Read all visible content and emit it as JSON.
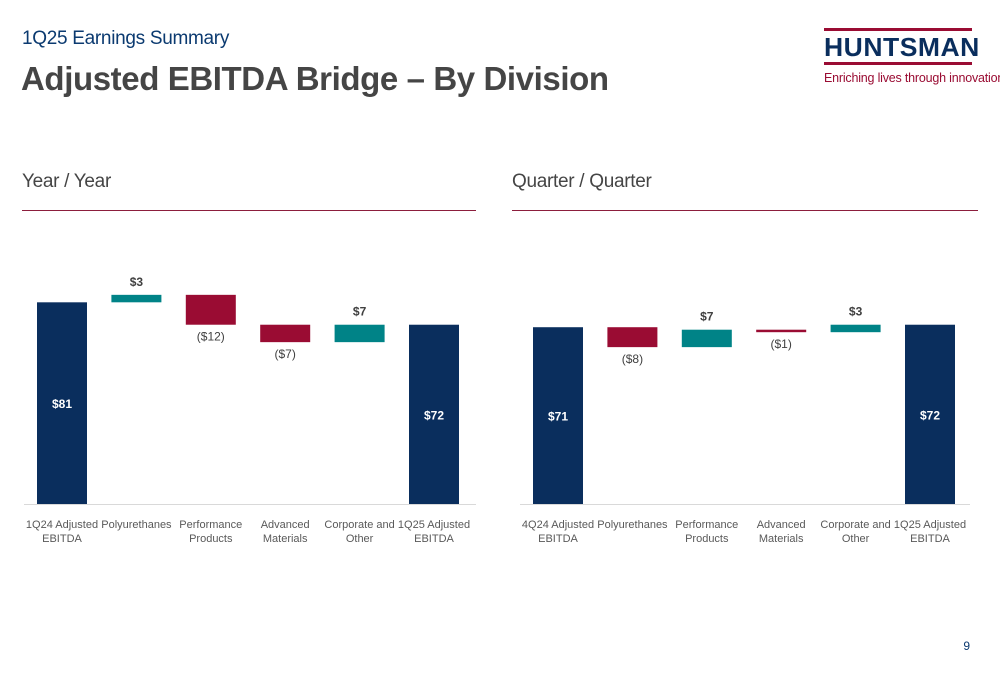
{
  "header": {
    "subtitle": "1Q25 Earnings Summary",
    "title": "Adjusted EBITDA Bridge – By Division"
  },
  "logo": {
    "wordmark": "HUNTSMAN",
    "tagline": "Enriching lives through innovation"
  },
  "sections": {
    "left_title": "Year / Year",
    "right_title": "Quarter / Quarter"
  },
  "page_number": "9",
  "colors": {
    "total": "#0a2e5d",
    "increase": "#008387",
    "decrease": "#9a0c33",
    "rule": "#8c1e3d"
  },
  "chart_data": [
    {
      "type": "bar",
      "subtype": "waterfall",
      "title": "Year / Year",
      "categories": [
        "1Q24 Adjusted EBITDA",
        "Polyurethanes",
        "Performance Products",
        "Advanced Materials",
        "Corporate and Other",
        "1Q25 Adjusted EBITDA"
      ],
      "category_lines": [
        [
          "1Q24 Adjusted",
          "EBITDA"
        ],
        [
          "Polyurethanes"
        ],
        [
          "Performance",
          "Products"
        ],
        [
          "Advanced",
          "Materials"
        ],
        [
          "Corporate and",
          "Other"
        ],
        [
          "1Q25 Adjusted",
          "EBITDA"
        ]
      ],
      "values": [
        81,
        3,
        -12,
        -7,
        7,
        72
      ],
      "kinds": [
        "total",
        "delta",
        "delta",
        "delta",
        "delta",
        "total"
      ],
      "labels": [
        "$81",
        "$3",
        "($12)",
        "($7)",
        "$7",
        "$72"
      ],
      "grid": false,
      "legend": "none"
    },
    {
      "type": "bar",
      "subtype": "waterfall",
      "title": "Quarter / Quarter",
      "categories": [
        "4Q24 Adjusted EBITDA",
        "Polyurethanes",
        "Performance Products",
        "Advanced Materials",
        "Corporate and Other",
        "1Q25 Adjusted EBITDA"
      ],
      "category_lines": [
        [
          "4Q24 Adjusted",
          "EBITDA"
        ],
        [
          "Polyurethanes"
        ],
        [
          "Performance",
          "Products"
        ],
        [
          "Advanced",
          "Materials"
        ],
        [
          "Corporate and",
          "Other"
        ],
        [
          "1Q25 Adjusted",
          "EBITDA"
        ]
      ],
      "values": [
        71,
        -8,
        7,
        -1,
        3,
        72
      ],
      "kinds": [
        "total",
        "delta",
        "delta",
        "delta",
        "delta",
        "total"
      ],
      "labels": [
        "$71",
        "($8)",
        "$7",
        "($1)",
        "$3",
        "$72"
      ],
      "grid": false,
      "legend": "none"
    }
  ]
}
